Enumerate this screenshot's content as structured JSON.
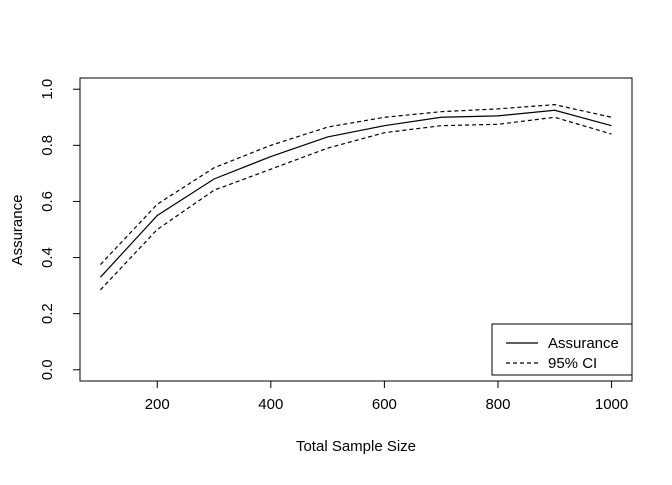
{
  "figure": {
    "background": "#ffffff",
    "foreground": "#000000"
  },
  "chart_data": {
    "type": "line",
    "title": "",
    "xlabel": "Total Sample Size",
    "ylabel": "Assurance",
    "x": [
      100,
      200,
      300,
      400,
      500,
      600,
      700,
      800,
      900,
      1000
    ],
    "series": [
      {
        "name": "Assurance",
        "style": "solid",
        "color": "#000000",
        "values": [
          0.33,
          0.55,
          0.68,
          0.76,
          0.83,
          0.87,
          0.9,
          0.905,
          0.925,
          0.87
        ]
      },
      {
        "name": "95% CI upper",
        "style": "dashed",
        "color": "#000000",
        "values": [
          0.375,
          0.59,
          0.72,
          0.8,
          0.865,
          0.9,
          0.92,
          0.93,
          0.945,
          0.9
        ]
      },
      {
        "name": "95% CI lower",
        "style": "dashed",
        "color": "#000000",
        "values": [
          0.285,
          0.5,
          0.64,
          0.715,
          0.79,
          0.845,
          0.87,
          0.875,
          0.9,
          0.84
        ]
      }
    ],
    "xticks": [
      200,
      400,
      600,
      800,
      1000
    ],
    "yticks": [
      "0.0",
      "0.2",
      "0.4",
      "0.6",
      "0.8",
      "1.0"
    ],
    "xlim": [
      64,
      1036
    ],
    "ylim": [
      -0.04,
      1.04
    ],
    "grid": false,
    "legend": {
      "position": "bottom-right",
      "entries": [
        {
          "label": "Assurance",
          "style": "solid"
        },
        {
          "label": "95% CI",
          "style": "dashed"
        }
      ]
    }
  }
}
